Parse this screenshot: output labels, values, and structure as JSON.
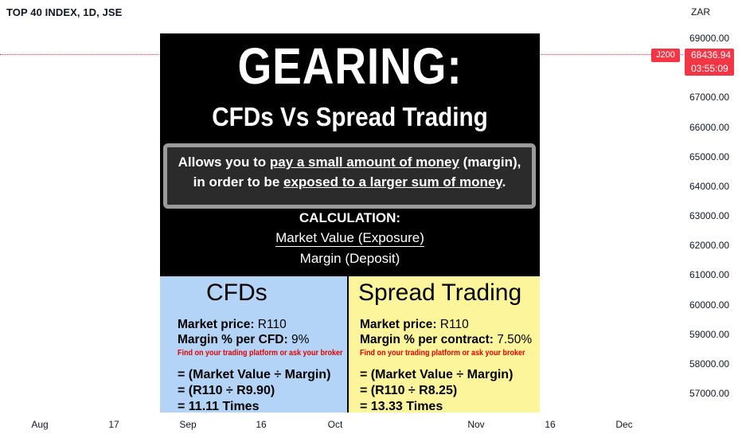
{
  "header": {
    "title": "TOP 40 INDEX, 1D, JSE",
    "currency": "ZAR"
  },
  "price_badge": {
    "symbol": "J200",
    "price": "68436.94",
    "countdown": "03:55:09",
    "color": "#f23645"
  },
  "chart_data": {
    "type": "line",
    "y_ticks": [
      "69000.00",
      "67000.00",
      "66000.00",
      "65000.00",
      "64000.00",
      "63000.00",
      "62000.00",
      "61000.00",
      "60000.00",
      "59000.00",
      "58000.00",
      "57000.00"
    ],
    "x_ticks": [
      "Aug",
      "17",
      "Sep",
      "16",
      "Oct",
      "Nov",
      "16",
      "Dec"
    ],
    "last_price": 68436.94
  },
  "overlay": {
    "title": "GEARING:",
    "subtitle": "CFDs Vs Spread Trading",
    "definition": {
      "l1_a": "Allows you to ",
      "l1_u": "pay a small amount of money",
      "l1_b": " (margin),",
      "l2_a": "in order to be ",
      "l2_u": "exposed to a larger sum of money",
      "l2_b": "."
    },
    "calc_title": "CALCULATION:",
    "calc_numerator": "Market Value (Exposure)",
    "calc_denominator": "Margin (Deposit)",
    "cfd": {
      "heading": "CFDs",
      "price_label": "Market price:",
      "price_value": " R110",
      "margin_label": "Margin % per CFD:",
      "margin_value": " 9%",
      "note": "Find on your trading platform or ask your broker",
      "eq1": "= (Market Value ÷ Margin)",
      "eq2": "= (R110 ÷ R9.90)",
      "eq3": "= 11.11 Times",
      "bg": "#b3d4f7"
    },
    "spread": {
      "heading": "Spread Trading",
      "price_label": "Market price:",
      "price_value": " R110",
      "margin_label": "Margin % per contract:",
      "margin_value": " 7.50%",
      "note": "Find on your trading platform or ask your broker",
      "eq1": "= (Market Value ÷ Margin)",
      "eq2": "= (R110 ÷ R8.25)",
      "eq3": "= 13.33 Times",
      "bg": "#fdf59c"
    }
  }
}
